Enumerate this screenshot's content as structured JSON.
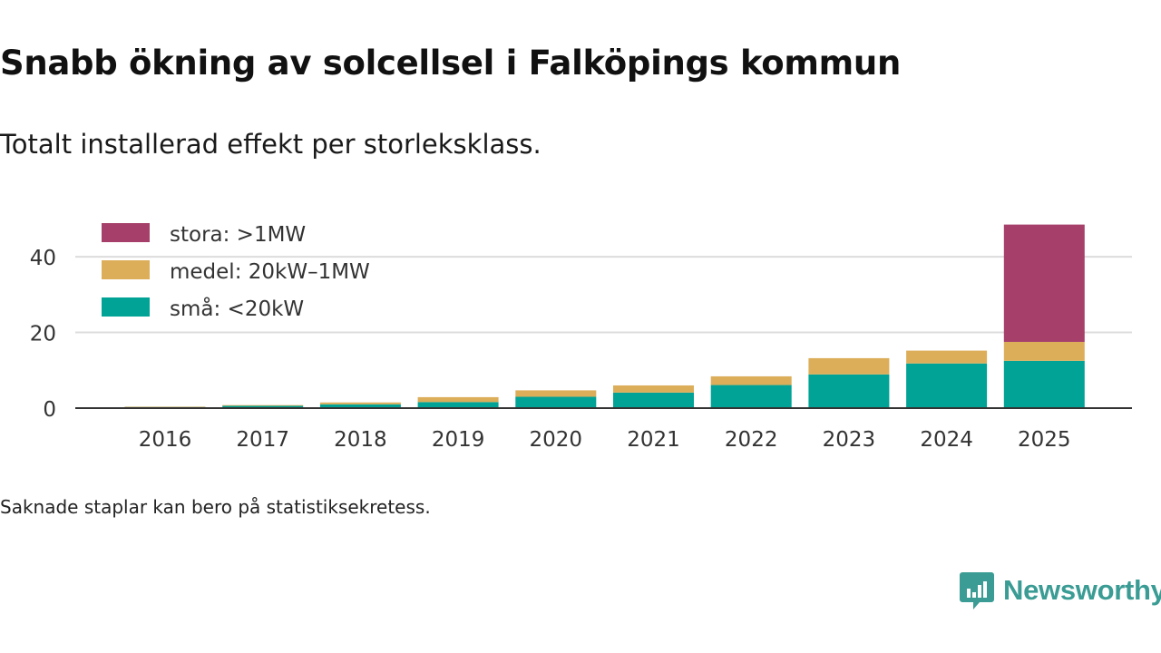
{
  "title": "Snabb ökning av solcellsel i Falköpings kommun",
  "subtitle": "Totalt installerad effekt per storleksklass.",
  "note": "Saknade staplar kan bero på statistiksekretess.",
  "brand": {
    "name": "Newsworthy",
    "icon": "newsworthy-logo-icon",
    "color": "#3a9c94"
  },
  "chart_data": {
    "type": "bar",
    "stacked": true,
    "categories": [
      "2016",
      "2017",
      "2018",
      "2019",
      "2020",
      "2021",
      "2022",
      "2023",
      "2024",
      "2025"
    ],
    "series": [
      {
        "name": "små: <20kW",
        "color": "#00a396",
        "values": [
          0.3,
          0.6,
          1.0,
          1.6,
          3.0,
          4.1,
          6.1,
          8.9,
          11.8,
          12.5
        ]
      },
      {
        "name": "medel: 20kW–1MW",
        "color": "#dcae5a",
        "values": [
          0.1,
          0.2,
          0.5,
          1.3,
          1.7,
          1.9,
          2.3,
          4.3,
          3.4,
          5.0
        ]
      },
      {
        "name": "stora: >1MW",
        "color": "#a6406a",
        "values": [
          0,
          0,
          0,
          0,
          0,
          0,
          0,
          0,
          0,
          31.0
        ]
      }
    ],
    "yticks": [
      0,
      20,
      40
    ],
    "ylim": [
      0,
      52
    ],
    "grid": true,
    "legend_position": "top-left",
    "xlabel": "",
    "ylabel": ""
  }
}
